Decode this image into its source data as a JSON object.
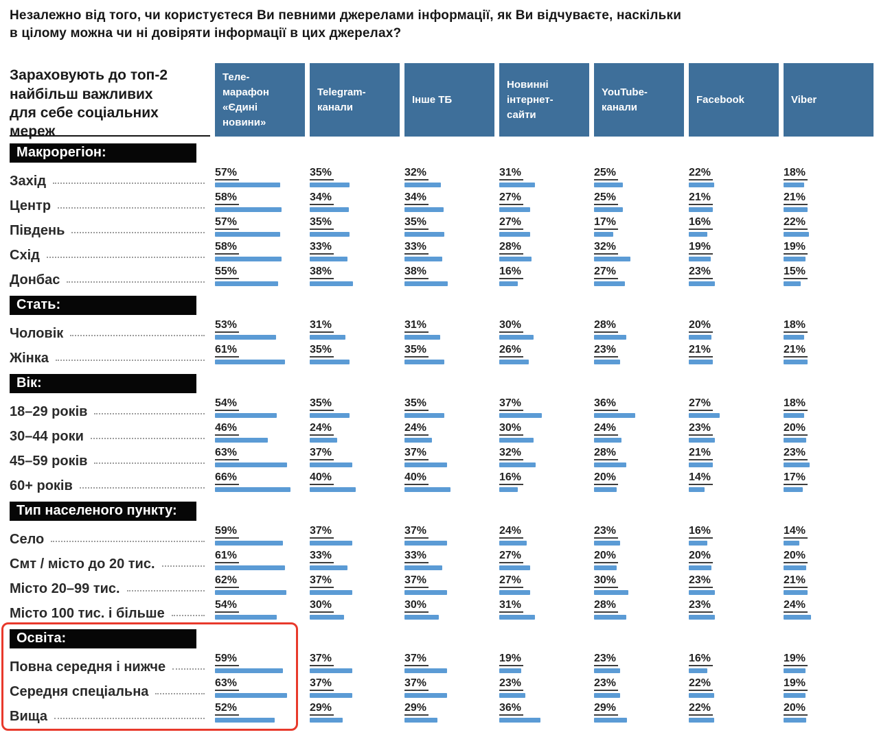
{
  "title": "Незалежно від того, чи користуєтеся Ви певними джерелами інформації, як Ви відчуваєте, наскільки\nв цілому можна чи ні довіряти інформації в цих джерелах?",
  "side_header": "Зараховують до топ-2\nнайбільш важливих\nдля себе соціальних\nмереж",
  "header": {
    "column_display": [
      "Теле-\nмарафон\n«Єдині\nновини»",
      "Telegram-\nканали",
      "Інше ТБ",
      "Новинні\nінтернет-\nсайти",
      "YouTube-\nканали",
      "Facebook",
      "Viber"
    ]
  },
  "colors": {
    "column_header_bg": "#3e6f9a",
    "bar": "#5b9bd5",
    "section_header_bg": "#060606",
    "highlight_border": "#e8392b"
  },
  "chart_data": {
    "type": "bar",
    "title": "Незалежно від того, чи користуєтеся Ви певними джерелами інформації, як Ви відчуваєте, наскільки в цілому можна чи ні довіряти інформації в цих джерелах?",
    "unit": "%",
    "xlim": [
      0,
      70
    ],
    "legend_position": "top",
    "columns": [
      "Телемарафон «Єдині новини»",
      "Telegram-канали",
      "Інше ТБ",
      "Новинні інтернет-сайти",
      "YouTube-канали",
      "Facebook",
      "Viber"
    ],
    "groups": [
      {
        "section": "Макрорегіон:",
        "highlighted": false,
        "rows": [
          {
            "label": "Захід",
            "values": [
              57,
              35,
              32,
              31,
              25,
              22,
              18
            ]
          },
          {
            "label": "Центр",
            "values": [
              58,
              34,
              34,
              27,
              25,
              21,
              21
            ]
          },
          {
            "label": "Південь",
            "values": [
              57,
              35,
              35,
              27,
              17,
              16,
              22
            ]
          },
          {
            "label": "Схід",
            "values": [
              58,
              33,
              33,
              28,
              32,
              19,
              19
            ]
          },
          {
            "label": "Донбас",
            "values": [
              55,
              38,
              38,
              16,
              27,
              23,
              15
            ]
          }
        ]
      },
      {
        "section": "Стать:",
        "highlighted": false,
        "rows": [
          {
            "label": "Чоловік",
            "values": [
              53,
              31,
              31,
              30,
              28,
              20,
              18
            ]
          },
          {
            "label": "Жінка",
            "values": [
              61,
              35,
              35,
              26,
              23,
              21,
              21
            ]
          }
        ]
      },
      {
        "section": "Вік:",
        "highlighted": false,
        "rows": [
          {
            "label": "18–29 років",
            "values": [
              54,
              35,
              35,
              37,
              36,
              27,
              18
            ]
          },
          {
            "label": "30–44 роки",
            "values": [
              46,
              24,
              24,
              30,
              24,
              23,
              20
            ]
          },
          {
            "label": "45–59 років",
            "values": [
              63,
              37,
              37,
              32,
              28,
              21,
              23
            ]
          },
          {
            "label": "60+ років",
            "values": [
              66,
              40,
              40,
              16,
              20,
              14,
              17
            ]
          }
        ]
      },
      {
        "section": "Тип населеного пункту:",
        "highlighted": false,
        "rows": [
          {
            "label": "Село",
            "values": [
              59,
              37,
              37,
              24,
              23,
              16,
              14
            ]
          },
          {
            "label": "Смт / місто до 20 тис.",
            "values": [
              61,
              33,
              33,
              27,
              20,
              20,
              20
            ]
          },
          {
            "label": "Місто 20–99 тис.",
            "values": [
              62,
              37,
              37,
              27,
              30,
              23,
              21
            ]
          },
          {
            "label": "Місто 100 тис. і більше",
            "values": [
              54,
              30,
              30,
              31,
              28,
              23,
              24
            ]
          }
        ]
      },
      {
        "section": "Освіта:",
        "highlighted": true,
        "rows": [
          {
            "label": "Повна середня і нижче",
            "values": [
              59,
              37,
              37,
              19,
              23,
              16,
              19
            ]
          },
          {
            "label": "Середня спеціальна",
            "values": [
              63,
              37,
              37,
              23,
              23,
              22,
              19
            ]
          },
          {
            "label": "Вища",
            "values": [
              52,
              29,
              29,
              36,
              29,
              22,
              20
            ]
          }
        ]
      }
    ]
  }
}
